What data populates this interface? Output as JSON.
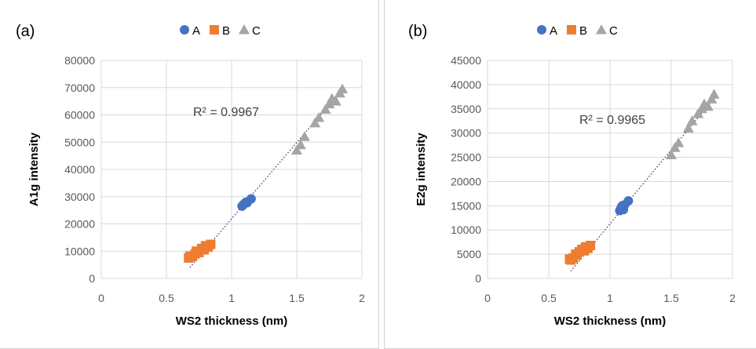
{
  "colors": {
    "A": "#4472C4",
    "B": "#ED7D31",
    "C": "#A5A5A5"
  },
  "chart_data": [
    {
      "panel_label": "(a)",
      "type": "scatter",
      "xlabel": "WS2 thickness (nm)",
      "ylabel": "A1g intensity",
      "xlim": [
        0,
        2
      ],
      "ylim": [
        0,
        80000
      ],
      "xticks": [
        "0",
        "0.5",
        "1",
        "1.5",
        "2"
      ],
      "yticks": [
        "0",
        "10000",
        "20000",
        "30000",
        "40000",
        "50000",
        "60000",
        "70000",
        "80000"
      ],
      "grid": true,
      "legend": "top-center",
      "r2_label": "R² = 0.9967",
      "trendline": {
        "x": [
          0.68,
          1.86
        ],
        "y": [
          4000,
          70000
        ]
      },
      "series": [
        {
          "name": "A",
          "marker": "circle",
          "x": [
            1.08,
            1.09,
            1.1,
            1.11,
            1.12,
            1.15
          ],
          "y": [
            26500,
            27000,
            27500,
            28000,
            27800,
            29200
          ]
        },
        {
          "name": "B",
          "marker": "square",
          "x": [
            0.67,
            0.68,
            0.7,
            0.72,
            0.73,
            0.75,
            0.77,
            0.79,
            0.8,
            0.82,
            0.84
          ],
          "y": [
            7500,
            8200,
            8000,
            9000,
            10000,
            9500,
            11000,
            10500,
            12000,
            11500,
            12500
          ]
        },
        {
          "name": "C",
          "marker": "triangle",
          "x": [
            1.5,
            1.53,
            1.56,
            1.64,
            1.67,
            1.72,
            1.75,
            1.77,
            1.8,
            1.83,
            1.85
          ],
          "y": [
            47000,
            49000,
            52000,
            57000,
            59000,
            62000,
            64000,
            66000,
            65000,
            68000,
            69500
          ]
        }
      ]
    },
    {
      "panel_label": "(b)",
      "type": "scatter",
      "xlabel": "WS2 thickness (nm)",
      "ylabel": "E2g intensity",
      "xlim": [
        0,
        2
      ],
      "ylim": [
        0,
        45000
      ],
      "xticks": [
        "0",
        "0.5",
        "1",
        "1.5",
        "2"
      ],
      "yticks": [
        "0",
        "5000",
        "10000",
        "15000",
        "20000",
        "25000",
        "30000",
        "35000",
        "40000",
        "45000"
      ],
      "grid": true,
      "legend": "top-center",
      "r2_label": "R² = 0.9965",
      "trendline": {
        "x": [
          0.68,
          1.86
        ],
        "y": [
          1500,
          37500
        ]
      },
      "series": [
        {
          "name": "A",
          "marker": "circle",
          "x": [
            1.08,
            1.09,
            1.1,
            1.11,
            1.12,
            1.15
          ],
          "y": [
            14000,
            14500,
            15000,
            14200,
            15200,
            16000
          ]
        },
        {
          "name": "B",
          "marker": "square",
          "x": [
            0.67,
            0.68,
            0.7,
            0.72,
            0.73,
            0.75,
            0.77,
            0.79,
            0.8,
            0.82,
            0.84
          ],
          "y": [
            4000,
            3800,
            4200,
            5000,
            4800,
            5500,
            6000,
            5700,
            6500,
            6200,
            6800
          ]
        },
        {
          "name": "C",
          "marker": "triangle",
          "x": [
            1.5,
            1.53,
            1.56,
            1.64,
            1.67,
            1.72,
            1.75,
            1.77,
            1.8,
            1.83,
            1.85
          ],
          "y": [
            25500,
            27000,
            28000,
            31000,
            32500,
            34000,
            35000,
            36000,
            35500,
            37000,
            38000
          ]
        }
      ]
    }
  ]
}
